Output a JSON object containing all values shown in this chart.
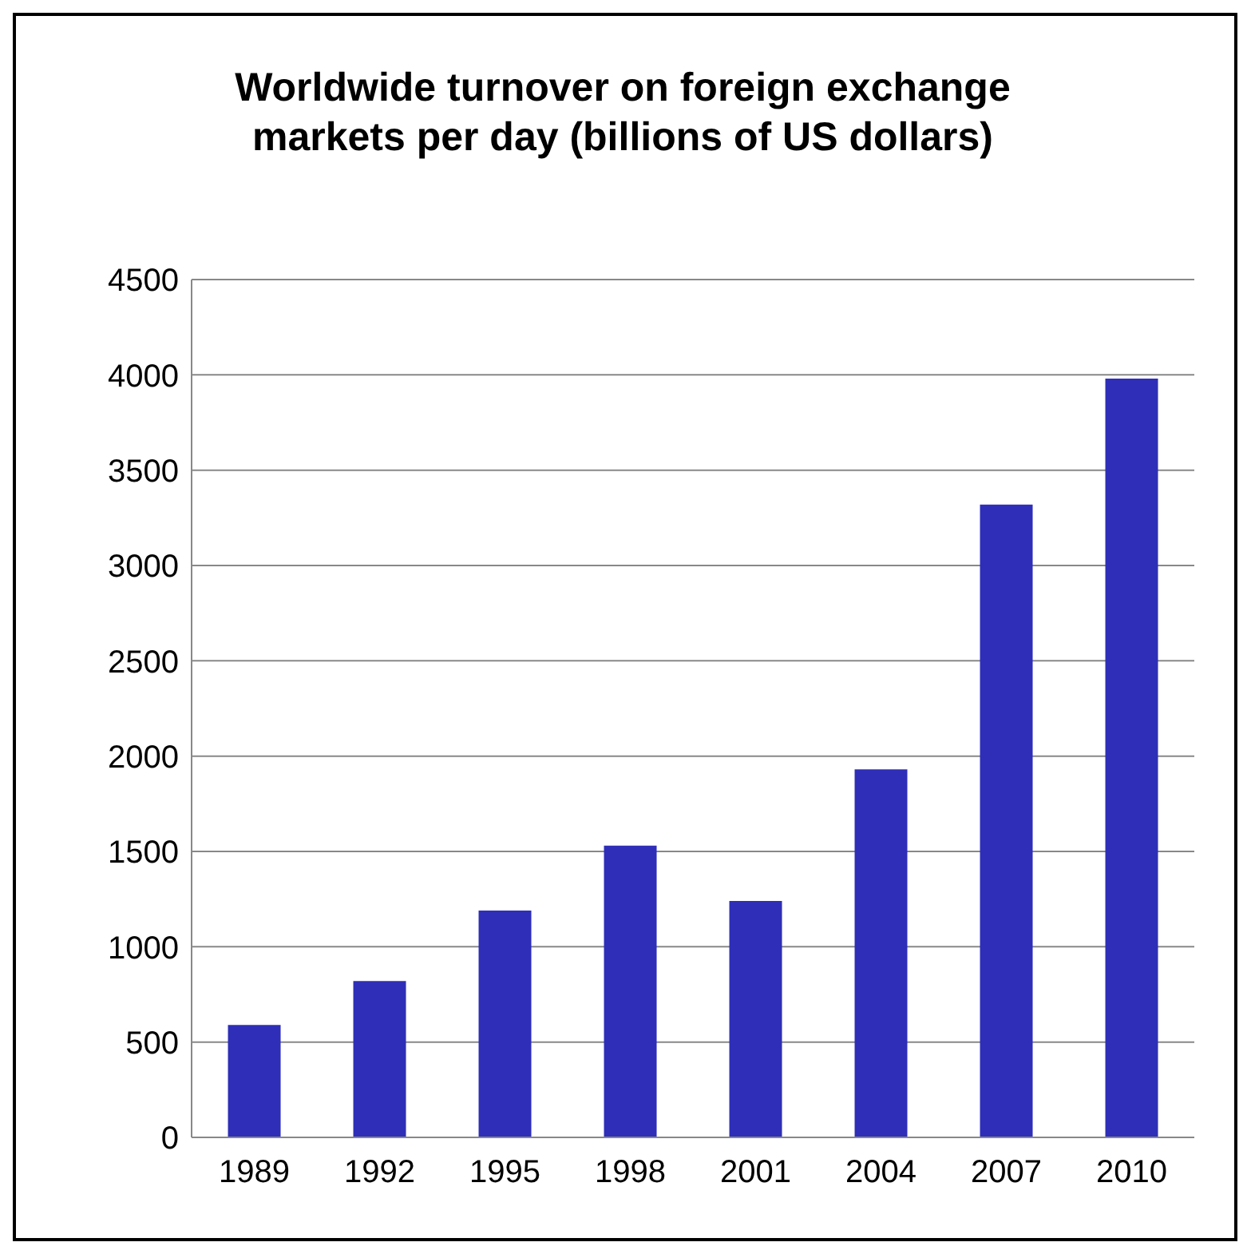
{
  "chart_data": {
    "type": "bar",
    "title": "Worldwide turnover on foreign exchange markets per day (billions of US dollars)",
    "categories": [
      "1989",
      "1992",
      "1995",
      "1998",
      "2001",
      "2004",
      "2007",
      "2010"
    ],
    "values": [
      590,
      820,
      1190,
      1530,
      1240,
      1930,
      3320,
      3980
    ],
    "color": "#2e2eb8",
    "ylim": [
      0,
      4500
    ],
    "yticks": [
      0,
      500,
      1000,
      1500,
      2000,
      2500,
      3000,
      3500,
      4000,
      4500
    ],
    "grid": "y"
  }
}
